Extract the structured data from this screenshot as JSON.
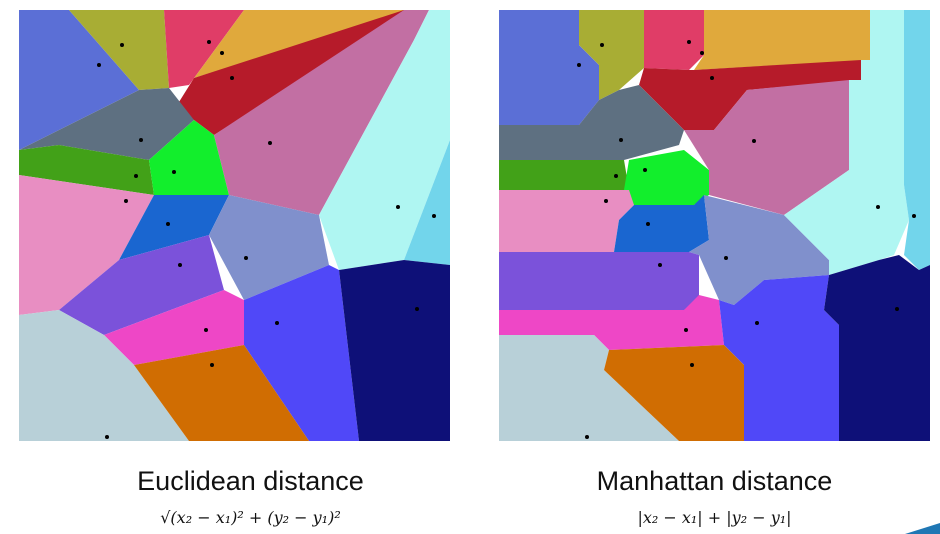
{
  "panels": [
    {
      "id": "euclidean",
      "caption": "Euclidean distance",
      "formula": "√(x₂ − x₁)² + (y₂ − y₁)²"
    },
    {
      "id": "manhattan",
      "caption": "Manhattan distance",
      "formula": "|x₂ − x₁| + |y₂ − y₁|"
    }
  ],
  "colors": {
    "royal-blue": "#5b6fd6",
    "olive": "#a8ad34",
    "crimson": "#e03d67",
    "orange-yellow": "#e0a93c",
    "dark-red": "#b61b2a",
    "slate": "#5e7081",
    "green": "#42a118",
    "bright-green": "#12ee2c",
    "pink": "#e88ec2",
    "mauve": "#c26fa3",
    "azure": "#1a66d0",
    "periwinkle": "#8090cc",
    "violet": "#7b52da",
    "magenta": "#ee47c6",
    "light-cyan": "#aff6f2",
    "sky": "#72d5eb",
    "blue-violet": "#5048f8",
    "navy": "#0e1078",
    "light-gray": "#b8d0d8",
    "burnt-orange": "#d06d02"
  }
}
